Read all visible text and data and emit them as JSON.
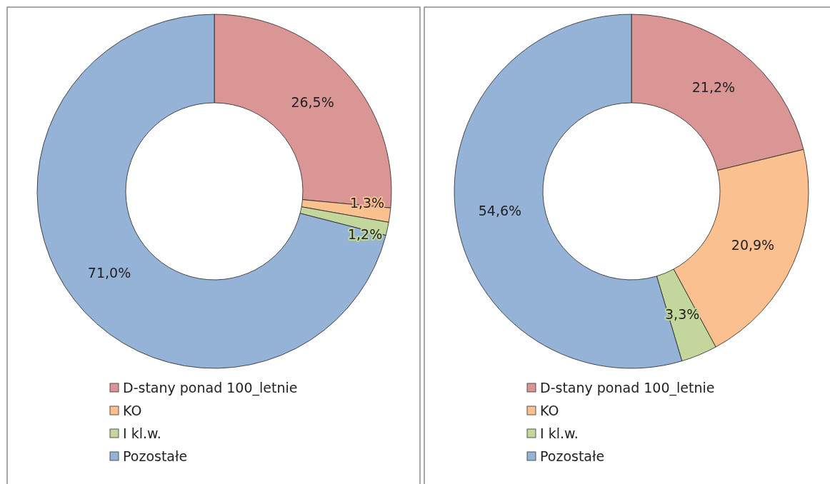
{
  "chart_data": [
    {
      "type": "donut",
      "categories": [
        "D-stany ponad 100_letnie",
        "KO",
        "I kl.w.",
        "Pozostałe"
      ],
      "values": [
        26.5,
        1.3,
        1.2,
        71.0
      ],
      "value_labels": [
        "26,5%",
        "1,3%",
        "1,2%",
        "71,0%"
      ],
      "colors": [
        "#d99694",
        "#fac090",
        "#c3d69b",
        "#95b3d7"
      ],
      "legend": "bottom"
    },
    {
      "type": "donut",
      "categories": [
        "D-stany ponad 100_letnie",
        "KO",
        "I kl.w.",
        "Pozostałe"
      ],
      "values": [
        21.2,
        20.9,
        3.3,
        54.6
      ],
      "value_labels": [
        "21,2%",
        "20,9%",
        "3,3%",
        "54,6%"
      ],
      "colors": [
        "#d99694",
        "#fac090",
        "#c3d69b",
        "#95b3d7"
      ],
      "legend": "bottom"
    }
  ]
}
